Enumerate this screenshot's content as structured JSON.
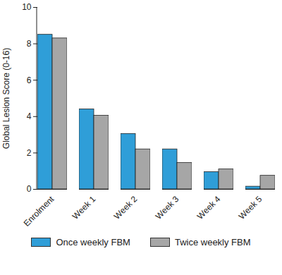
{
  "chart_data": {
    "type": "bar",
    "y_label": "Global Lesion Score (0-16)",
    "categories": [
      "Enrolment",
      "Week 1",
      "Week 2",
      "Week 3",
      "Week 4",
      "Week 5"
    ],
    "series": [
      {
        "name": "Once weekly FBM",
        "color": "#2f9ed8",
        "values": [
          8.5,
          4.4,
          3.05,
          2.2,
          0.95,
          0.15
        ]
      },
      {
        "name": "Twice weekly FBM",
        "color": "#a6a6a6",
        "values": [
          8.3,
          4.05,
          2.2,
          1.45,
          1.1,
          0.75
        ]
      }
    ],
    "ylim": [
      0,
      10
    ],
    "yticks": [
      0,
      2,
      4,
      6,
      8,
      10
    ],
    "legend": "bottom"
  }
}
